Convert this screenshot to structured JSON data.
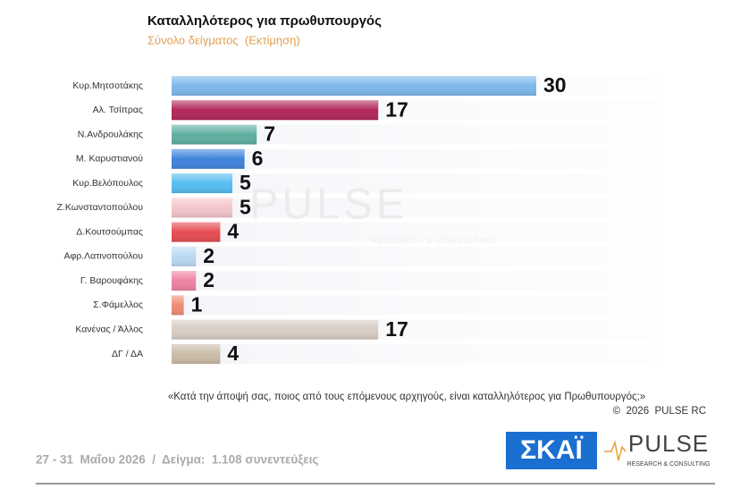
{
  "chart_data": {
    "type": "bar",
    "orientation": "horizontal",
    "title": "Καταλληλότερος για πρωθυπουργός",
    "subtitle": "Σύνολο δείγματος  (Εκτίμηση)",
    "categories": [
      "Κυρ.Μητσοτάκης",
      "Αλ. Τσίπρας",
      "Ν.Ανδρουλάκης",
      "Μ. Καρυστιανού",
      "Κυρ.Βελόπουλος",
      "Ζ.Κωνσταντοπούλου",
      "Δ.Κουτσούμπας",
      "Αφρ.Λατινοπούλου",
      "Γ. Βαρουφάκης",
      "Σ.Φάμελλος",
      "Κανένας / Άλλος",
      "ΔΓ / ΔΑ"
    ],
    "values": [
      30,
      17,
      7,
      6,
      5,
      5,
      4,
      2,
      2,
      1,
      17,
      4
    ],
    "colors": [
      "#7db9ea",
      "#b3285c",
      "#5fae9f",
      "#3f84dc",
      "#55bdf0",
      "#f3c6ca",
      "#e64c52",
      "#b9d9f2",
      "#ee82a2",
      "#f08b72",
      "#d8ccc3",
      "#cbbba7"
    ],
    "xlim": [
      0,
      40
    ],
    "question": "«Κατά την άποψή σας, ποιος από τους επόμενους αρχηγούς, είναι καταλληλότερος για Πρωθυπουργός;»",
    "copyright": "©  2026  PULSE RC",
    "footer": "27 - 31  Μαΐου 2026  /  Δείγμα:  1.108 συνεντεύξεις",
    "logos": {
      "skai": "ΣΚΑΪ",
      "pulse": "PULSE",
      "pulse_tagline": "RESEARCH & CONSULTING"
    }
  }
}
